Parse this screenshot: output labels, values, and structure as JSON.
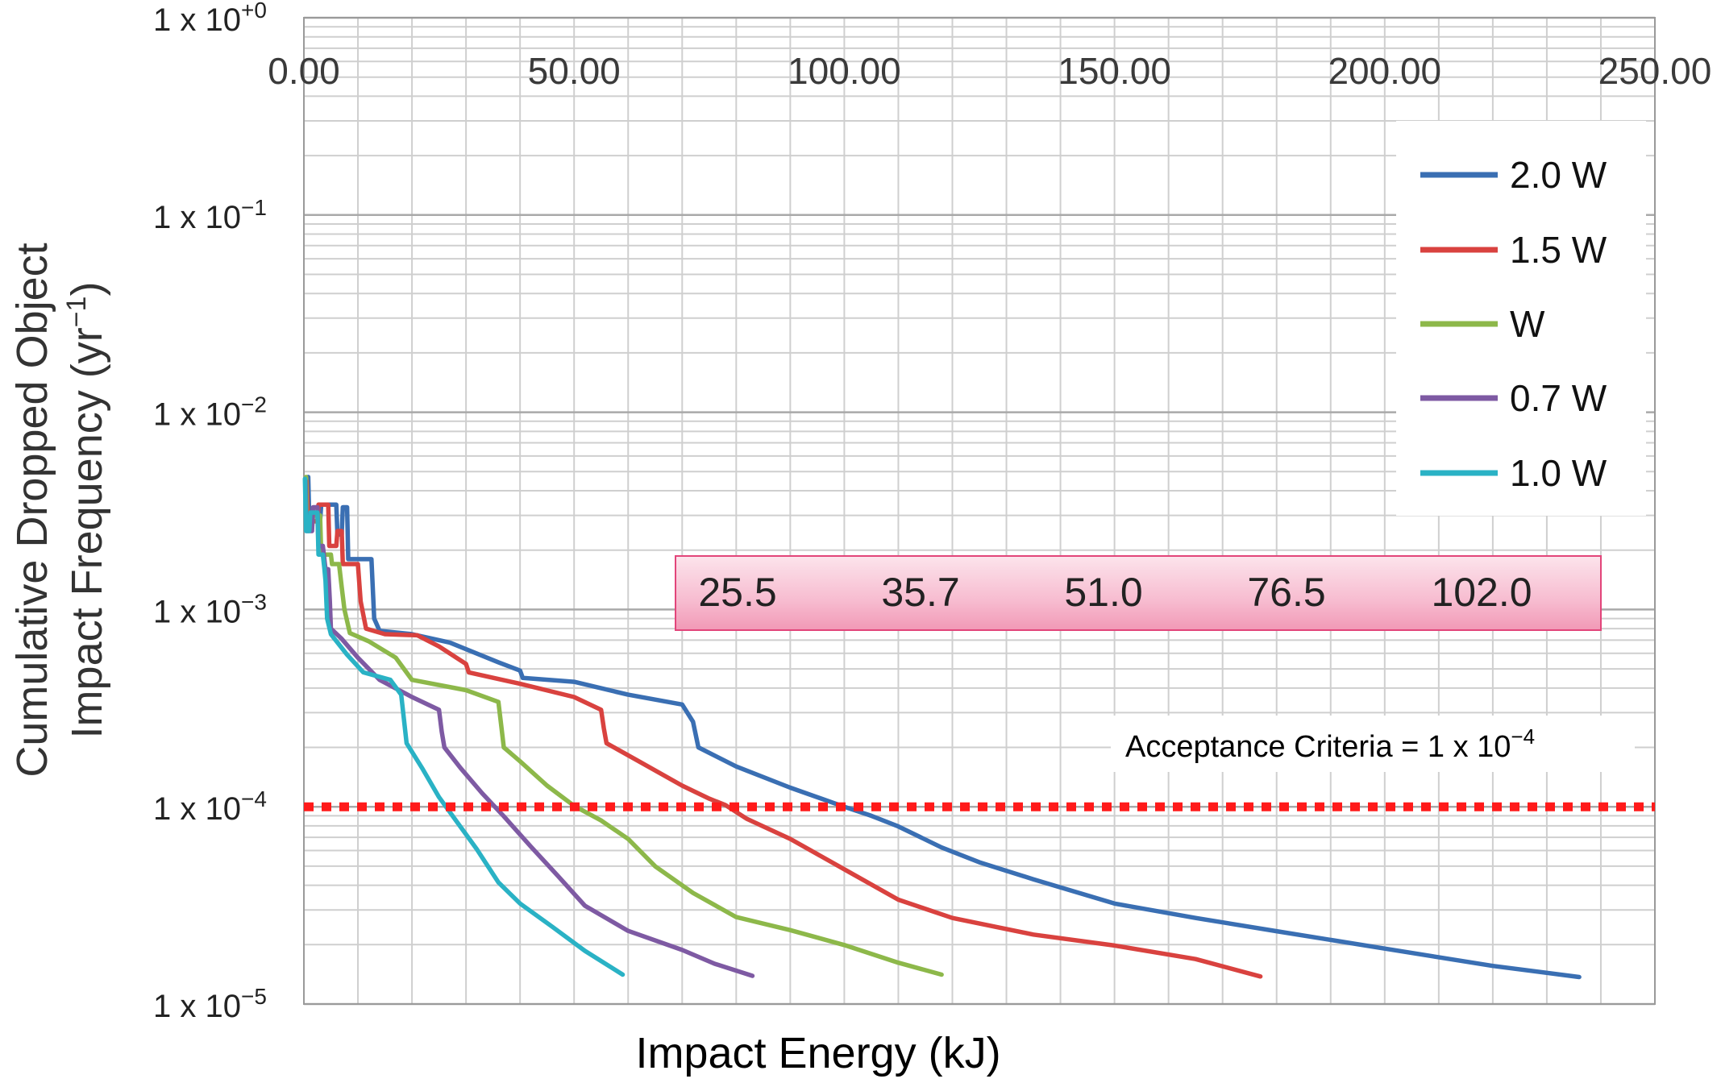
{
  "chart_data": {
    "type": "line",
    "xlabel": "Impact Energy (kJ)",
    "ylabel_line1": "Cumulative Dropped Object",
    "ylabel_line2": "Impact Frequency (yr",
    "ylabel_sup": "−1",
    "ylabel_close": ")",
    "xlim": [
      0,
      250
    ],
    "ylim_log10": [
      -5,
      0
    ],
    "x_ticks": [
      "0.00",
      "50.00",
      "100.00",
      "150.00",
      "200.00",
      "250.00"
    ],
    "y_ticks": [
      {
        "exp": 0,
        "base": "1 x 10",
        "sup": "+0"
      },
      {
        "exp": -1,
        "base": "1 x 10",
        "sup": "−1"
      },
      {
        "exp": -2,
        "base": "1 x 10",
        "sup": "−2"
      },
      {
        "exp": -3,
        "base": "1 x 10",
        "sup": "−3"
      },
      {
        "exp": -4,
        "base": "1 x 10",
        "sup": "−4"
      },
      {
        "exp": -5,
        "base": "1 x 10",
        "sup": "−5"
      }
    ],
    "grid": true,
    "legend_position": "top-right",
    "acceptance": {
      "value": 0.0001,
      "label_base": "Acceptance Criteria =  1 x 10",
      "label_sup": "−4",
      "color": "#ff1a1a"
    },
    "annotation_values": [
      "25.5",
      "35.7",
      "51.0",
      "76.5",
      "102.0"
    ],
    "series": [
      {
        "name": "2.0 W",
        "color": "#3a6fb3",
        "points": [
          [
            0.8,
            0.0047
          ],
          [
            1,
            0.0028
          ],
          [
            3,
            0.0028
          ],
          [
            3.2,
            0.0034
          ],
          [
            6,
            0.0034
          ],
          [
            6.2,
            0.0024
          ],
          [
            7,
            0.0024
          ],
          [
            7.2,
            0.0033
          ],
          [
            8,
            0.0033
          ],
          [
            8.2,
            0.0018
          ],
          [
            11,
            0.0018
          ],
          [
            11.3,
            0.0018
          ],
          [
            12.5,
            0.0018
          ],
          [
            13,
            0.0009
          ],
          [
            14,
            0.00078
          ],
          [
            20,
            0.00075
          ],
          [
            27,
            0.00068
          ],
          [
            36,
            0.00054
          ],
          [
            40,
            0.00049
          ],
          [
            40.5,
            0.00045
          ],
          [
            50,
            0.00043
          ],
          [
            60,
            0.00037
          ],
          [
            70,
            0.00033
          ],
          [
            72,
            0.00027
          ],
          [
            73,
            0.0002
          ],
          [
            80,
            0.00016
          ],
          [
            90,
            0.000125
          ],
          [
            100,
            0.0001
          ],
          [
            105,
            9e-05
          ],
          [
            110,
            7.95e-05
          ],
          [
            118,
            6.22e-05
          ],
          [
            125,
            5.23e-05
          ],
          [
            135,
            4.29e-05
          ],
          [
            150,
            3.23e-05
          ],
          [
            165,
            2.73e-05
          ],
          [
            180,
            2.34e-05
          ],
          [
            200,
            1.91e-05
          ],
          [
            220,
            1.56e-05
          ],
          [
            236,
            1.37e-05
          ]
        ]
      },
      {
        "name": "1.5 W",
        "color": "#d9423f",
        "points": [
          [
            0.5,
            0.0045
          ],
          [
            0.8,
            0.0028
          ],
          [
            2.5,
            0.0028
          ],
          [
            2.7,
            0.0034
          ],
          [
            4.5,
            0.0034
          ],
          [
            4.7,
            0.0021
          ],
          [
            6,
            0.0021
          ],
          [
            6.2,
            0.0025
          ],
          [
            7,
            0.0025
          ],
          [
            7.2,
            0.0017
          ],
          [
            9.5,
            0.0017
          ],
          [
            10,
            0.0017
          ],
          [
            10.5,
            0.0011
          ],
          [
            11.5,
            0.0008
          ],
          [
            15,
            0.00075
          ],
          [
            21,
            0.00074
          ],
          [
            25,
            0.00065
          ],
          [
            30,
            0.00053
          ],
          [
            30.5,
            0.00048
          ],
          [
            40,
            0.00042
          ],
          [
            50,
            0.00036
          ],
          [
            55,
            0.00031
          ],
          [
            55.5,
            0.00025
          ],
          [
            56,
            0.00021
          ],
          [
            62,
            0.00017
          ],
          [
            70,
            0.000128
          ],
          [
            75,
            0.00011
          ],
          [
            78,
            0.000102
          ],
          [
            82,
            8.68e-05
          ],
          [
            90,
            6.87e-05
          ],
          [
            100,
            4.82e-05
          ],
          [
            110,
            3.38e-05
          ],
          [
            120,
            2.73e-05
          ],
          [
            135,
            2.25e-05
          ],
          [
            150,
            1.98e-05
          ],
          [
            165,
            1.69e-05
          ],
          [
            177,
            1.38e-05
          ]
        ]
      },
      {
        "name": "W",
        "color": "#8db84a",
        "points": [
          [
            0.4,
            0.0047
          ],
          [
            0.6,
            0.0026
          ],
          [
            1.5,
            0.0026
          ],
          [
            1.7,
            0.003
          ],
          [
            3,
            0.003
          ],
          [
            3.2,
            0.0019
          ],
          [
            5,
            0.0019
          ],
          [
            5.2,
            0.0017
          ],
          [
            6.5,
            0.0017
          ],
          [
            7,
            0.0013
          ],
          [
            7.5,
            0.001
          ],
          [
            8.5,
            0.00076
          ],
          [
            12,
            0.00069
          ],
          [
            17,
            0.00057
          ],
          [
            20,
            0.00044
          ],
          [
            30,
            0.00039
          ],
          [
            36,
            0.00034
          ],
          [
            36.5,
            0.00026
          ],
          [
            37,
            0.0002
          ],
          [
            40,
            0.00017
          ],
          [
            45,
            0.000128
          ],
          [
            50,
            0.000101
          ],
          [
            55,
            8.52e-05
          ],
          [
            60,
            6.87e-05
          ],
          [
            65,
            4.99e-05
          ],
          [
            72,
            3.66e-05
          ],
          [
            80,
            2.76e-05
          ],
          [
            90,
            2.37e-05
          ],
          [
            100,
            1.99e-05
          ],
          [
            110,
            1.62e-05
          ],
          [
            118,
            1.41e-05
          ]
        ]
      },
      {
        "name": "0.7 W",
        "color": "#7e5aa3",
        "points": [
          [
            0.3,
            0.0045
          ],
          [
            0.5,
            0.0025
          ],
          [
            1.5,
            0.0025
          ],
          [
            1.7,
            0.0033
          ],
          [
            2.5,
            0.0033
          ],
          [
            2.7,
            0.0021
          ],
          [
            3.5,
            0.0021
          ],
          [
            4,
            0.0016
          ],
          [
            4.5,
            0.0016
          ],
          [
            4.8,
            0.0011
          ],
          [
            5,
            0.0008
          ],
          [
            7,
            0.00071
          ],
          [
            10,
            0.00057
          ],
          [
            14,
            0.00044
          ],
          [
            20,
            0.00036
          ],
          [
            25,
            0.00031
          ],
          [
            25.5,
            0.00024
          ],
          [
            26,
            0.0002
          ],
          [
            29,
            0.000157
          ],
          [
            33,
            0.000117
          ],
          [
            37,
            8.95e-05
          ],
          [
            42,
            6.28e-05
          ],
          [
            47,
            4.46e-05
          ],
          [
            52,
            3.15e-05
          ],
          [
            60,
            2.35e-05
          ],
          [
            70,
            1.88e-05
          ],
          [
            76,
            1.6e-05
          ],
          [
            83,
            1.39e-05
          ]
        ]
      },
      {
        "name": "1.0 W",
        "color": "#2ab2c5",
        "points": [
          [
            0.2,
            0.0046
          ],
          [
            0.4,
            0.0025
          ],
          [
            1,
            0.0025
          ],
          [
            1.2,
            0.0031
          ],
          [
            2.5,
            0.0031
          ],
          [
            2.7,
            0.0019
          ],
          [
            3.5,
            0.0019
          ],
          [
            3.8,
            0.0016
          ],
          [
            4,
            0.0014
          ],
          [
            4.3,
            0.0009
          ],
          [
            5,
            0.00075
          ],
          [
            8,
            0.00059
          ],
          [
            11,
            0.00048
          ],
          [
            16,
            0.00044
          ],
          [
            18,
            0.00037
          ],
          [
            18.5,
            0.00028
          ],
          [
            19,
            0.00021
          ],
          [
            22,
            0.000155
          ],
          [
            25,
            0.000112
          ],
          [
            28,
            8.62e-05
          ],
          [
            32,
            6.09e-05
          ],
          [
            36,
            4.14e-05
          ],
          [
            40,
            3.23e-05
          ],
          [
            46,
            2.46e-05
          ],
          [
            52,
            1.86e-05
          ],
          [
            59,
            1.41e-05
          ]
        ]
      }
    ]
  }
}
